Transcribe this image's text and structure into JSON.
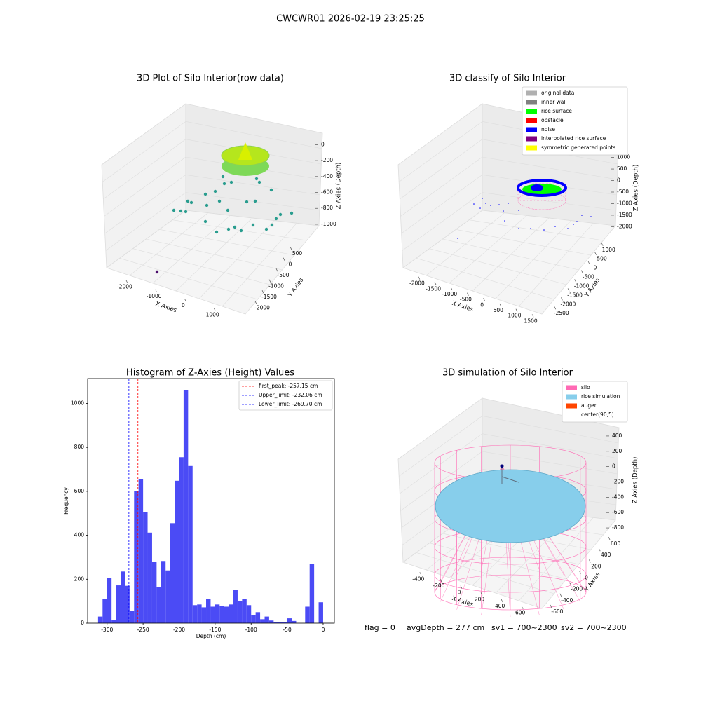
{
  "title": "CWCWR01 2026-02-19 23:25:25",
  "chart_data": [
    {
      "type": "scatter3d",
      "title": "3D Plot of Silo Interior(row data)",
      "xlabel": "X Axies",
      "ylabel": "Y Axies",
      "zlabel": "Z Axies (Depth)",
      "xlim": [
        -2500,
        1500
      ],
      "xticks": [
        -2000,
        -1000,
        0,
        1000
      ],
      "ylim": [
        700,
        -2300
      ],
      "yticks": [
        500,
        0,
        -500,
        -1000,
        -1500,
        -2000
      ],
      "zlim": [
        100,
        -1150
      ],
      "zticks": [
        0,
        -200,
        -400,
        -600,
        -800,
        -1000
      ]
    },
    {
      "type": "classify3d",
      "title": "3D classify of Silo Interior",
      "xlabel": "X Axies",
      "ylabel": "Y Axies",
      "zlabel": "Z Axies (Depth)",
      "xlim": [
        -2300,
        1800
      ],
      "xticks": [
        -2000,
        -1500,
        -1000,
        -500,
        0,
        500,
        1000,
        1500
      ],
      "ylim": [
        1300,
        -2800
      ],
      "yticks": [
        1000,
        500,
        0,
        -500,
        -1000,
        -1500,
        -2000,
        -2500
      ],
      "zlim": [
        1200,
        -2200
      ],
      "zticks": [
        1000,
        500,
        0,
        -500,
        -1000,
        -1500,
        -2000
      ],
      "legend": [
        {
          "name": "original data",
          "color": "#b0b0b0"
        },
        {
          "name": "inner wall",
          "color": "#808080"
        },
        {
          "name": "rice surface",
          "color": "#00ff00"
        },
        {
          "name": "obstacle",
          "color": "#ff0000"
        },
        {
          "name": "noise",
          "color": "#0000ff"
        },
        {
          "name": "interpolated rice surface",
          "color": "#800080"
        },
        {
          "name": "symmetric generated points",
          "color": "#ffff00"
        }
      ]
    },
    {
      "type": "histogram",
      "title": "Histogram of Z-Axies (Height) Values",
      "xlabel": "Depth (cm)",
      "ylabel": "Frequency",
      "color": "#4b4bf5",
      "bins": [
        -312.5,
        -306.25,
        -300,
        -293.75,
        -287.5,
        -281.25,
        -275,
        -268.75,
        -262.5,
        -256.25,
        -250,
        -243.75,
        -237.5,
        -231.25,
        -225,
        -218.75,
        -212.5,
        -206.25,
        -200,
        -193.75,
        -187.5,
        -181.25,
        -175,
        -168.75,
        -162.5,
        -156.25,
        -150,
        -143.75,
        -137.5,
        -131.25,
        -125,
        -118.75,
        -112.5,
        -106.25,
        -100,
        -93.75,
        -87.5,
        -81.25,
        -75,
        -68.75,
        -62.5,
        -56.25,
        -50,
        -43.75,
        -37.5,
        -31.25,
        -25,
        -18.75,
        -12.5,
        -6.25,
        0
      ],
      "values": [
        30,
        110,
        205,
        15,
        172,
        235,
        170,
        55,
        600,
        655,
        505,
        412,
        280,
        165,
        283,
        240,
        455,
        648,
        755,
        1060,
        715,
        82,
        85,
        72,
        110,
        75,
        85,
        78,
        75,
        85,
        150,
        100,
        110,
        82,
        38,
        50,
        18,
        30,
        12,
        5,
        5,
        5,
        22,
        10,
        0,
        0,
        75,
        270,
        0,
        95
      ],
      "xlim": [
        -327,
        15.6
      ],
      "xticks": [
        -300,
        -250,
        -200,
        -150,
        -100,
        -50,
        0
      ],
      "ylim": [
        0,
        1113
      ],
      "yticks": [
        0,
        200,
        400,
        600,
        800,
        1000
      ],
      "lines": [
        {
          "name": "first_peak: -257.15 cm",
          "value": -257.15,
          "color": "#ff0000"
        },
        {
          "name": "Upper_limit: -232.06 cm",
          "value": -232.06,
          "color": "#0000ff"
        },
        {
          "name": "Lower_limit: -269.70 cm",
          "value": -269.7,
          "color": "#0000ff"
        }
      ],
      "legend_position": "upper right"
    },
    {
      "type": "simulation3d",
      "title": "3D simulation of Silo Interior",
      "xlabel": "X Axies",
      "ylabel": "Y Axies",
      "zlabel": "Z Axies (Depth)",
      "xlim": [
        -550,
        750
      ],
      "xticks": [
        -400,
        -200,
        0,
        200,
        400,
        600
      ],
      "ylim": [
        700,
        -700
      ],
      "yticks": [
        600,
        400,
        200,
        0,
        -200,
        -400,
        -600
      ],
      "zlim": [
        500,
        -900
      ],
      "zticks": [
        400,
        200,
        0,
        -200,
        -400,
        -600,
        -800
      ],
      "legend": [
        {
          "name": "silo",
          "color": "#ff69b4"
        },
        {
          "name": "rice simulation",
          "color": "#87ceeb"
        },
        {
          "name": "auger",
          "color": "#ff4500"
        },
        {
          "name": "center(90,5)",
          "color": "#ffffff"
        }
      ]
    }
  ],
  "footer": [
    "flag = 0",
    "avgDepth = 277 cm",
    "sv1 = 700~2300",
    "sv2 = 700~2300"
  ]
}
